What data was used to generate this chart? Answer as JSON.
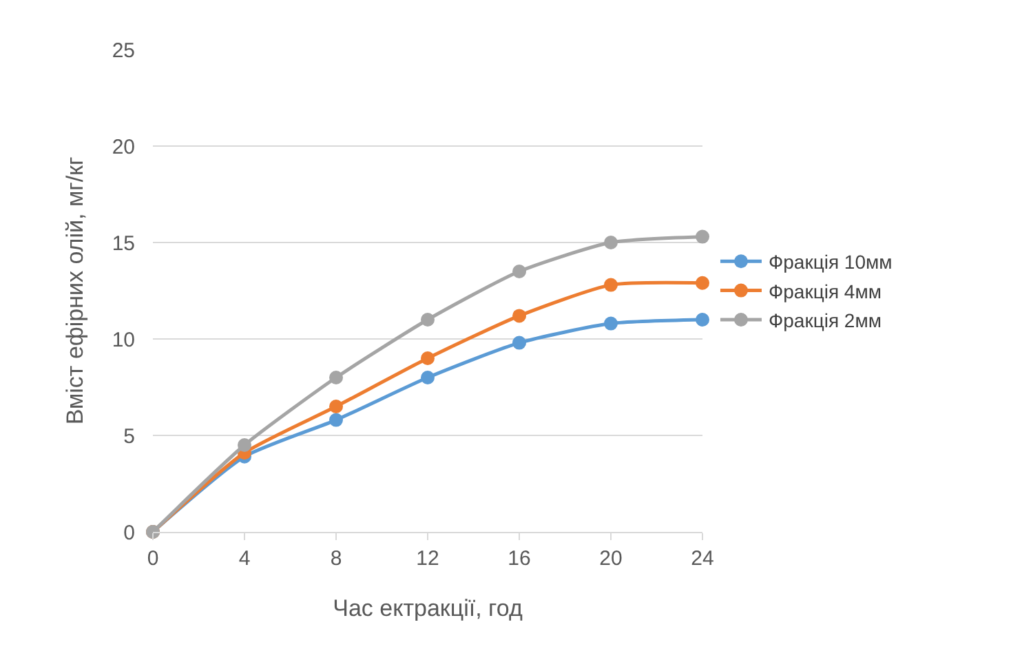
{
  "chart_data": {
    "type": "line",
    "xlabel": "Час ектракції, год",
    "ylabel": "Вміст ефірних олій, мг/кг",
    "x": [
      0,
      4,
      8,
      12,
      16,
      20,
      24
    ],
    "series": [
      {
        "name": "Фракція 10мм",
        "color": "#5b9bd5",
        "values": [
          0,
          3.9,
          5.8,
          8.0,
          9.8,
          10.8,
          11.0
        ]
      },
      {
        "name": "Фракція 4мм",
        "color": "#ed7d31",
        "values": [
          0,
          4.1,
          6.5,
          9.0,
          11.2,
          12.8,
          12.9
        ]
      },
      {
        "name": "Фракція 2мм",
        "color": "#a5a5a5",
        "values": [
          0,
          4.5,
          8.0,
          11.0,
          13.5,
          15.0,
          15.3
        ]
      }
    ],
    "xlim": [
      0,
      24
    ],
    "xticks": [
      0,
      4,
      8,
      12,
      16,
      20,
      24
    ],
    "ylim": [
      0,
      25
    ],
    "yticks": [
      0,
      5,
      10,
      15,
      20,
      25
    ],
    "grid": "y",
    "legend": "right",
    "marker": "circle",
    "line_style": "solid"
  }
}
